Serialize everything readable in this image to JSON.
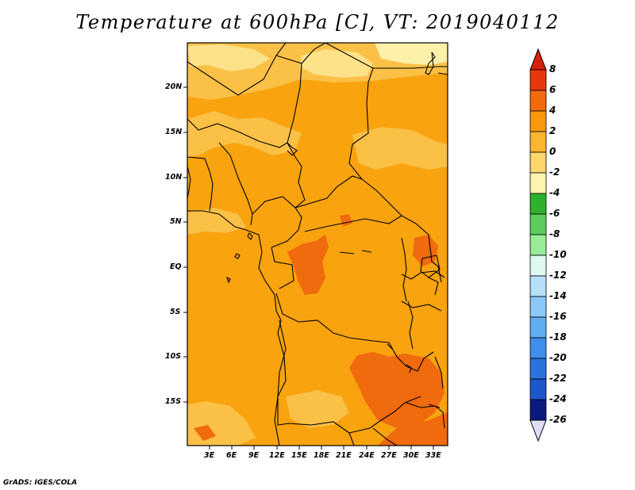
{
  "title": "Temperature at 600hPa [C], VT: 2019040112",
  "footer": "GrADS: IGES/COLA",
  "latitude_labels": [
    "20N",
    "15N",
    "10N",
    "5N",
    "EQ",
    "5S",
    "10S",
    "15S"
  ],
  "longitude_labels": [
    "3E",
    "6E",
    "9E",
    "12E",
    "15E",
    "18E",
    "21E",
    "24E",
    "27E",
    "30E",
    "33E"
  ],
  "colorbar": {
    "labels": [
      "8",
      "6",
      "4",
      "2",
      "0",
      "-2",
      "-4",
      "-6",
      "-8",
      "-10",
      "-12",
      "-14",
      "-16",
      "-18",
      "-20",
      "-22",
      "-24",
      "-26"
    ],
    "colors": [
      "#e22a0b",
      "#f05a0c",
      "#f98e0d",
      "#fbb02b",
      "#fdd66c",
      "#fdf4a6",
      "#2eb22e",
      "#62cf62",
      "#9ded9d",
      "#dcf9f4",
      "#b6e0f9",
      "#8ac8f7",
      "#62acf2",
      "#3f8ee9",
      "#2c72dd",
      "#1e57cc",
      "#1239a9",
      "#0b1a7e",
      "#06084f"
    ],
    "top_arrow_color": "#d5200a",
    "bottom_arrow_color": "#dedef8"
  }
}
